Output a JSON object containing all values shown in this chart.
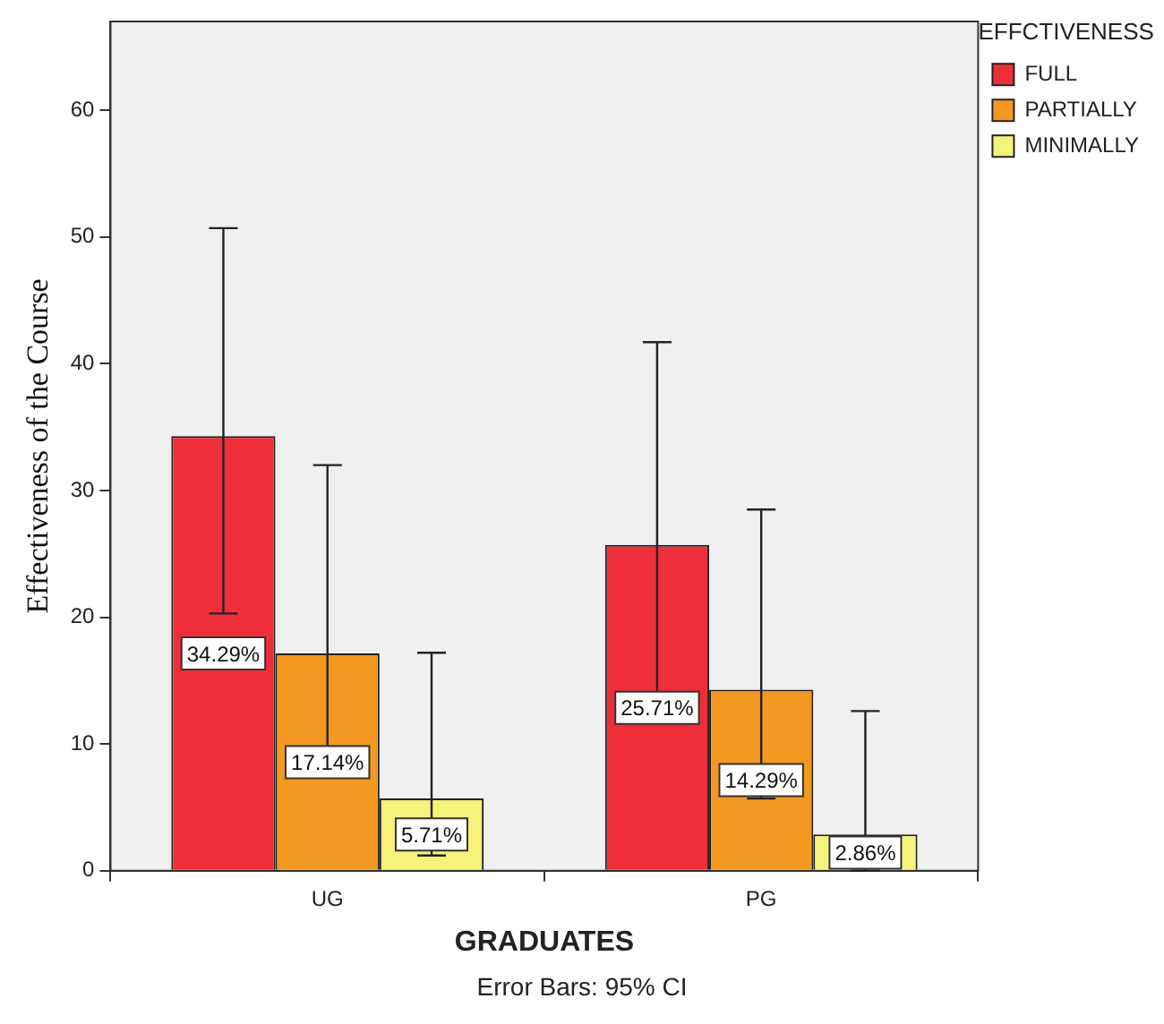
{
  "chart_data": {
    "type": "bar",
    "xlabel": "GRADUATES",
    "ylabel": "Effectiveness of the Course",
    "legend_title": "EFFCTIVENESS",
    "categories": [
      "UG",
      "PG"
    ],
    "series": [
      {
        "name": "FULL",
        "color": "#ee2f3a",
        "values": [
          34.29,
          25.71
        ],
        "value_labels": [
          "34.29%",
          "25.71%"
        ],
        "errors": [
          [
            20.3,
            50.7
          ],
          [
            13.6,
            41.7
          ]
        ]
      },
      {
        "name": "PARTIALLY",
        "color": "#f39820",
        "values": [
          17.14,
          14.29
        ],
        "value_labels": [
          "17.14%",
          "14.29%"
        ],
        "errors": [
          [
            7.6,
            32.0
          ],
          [
            5.7,
            28.5
          ]
        ]
      },
      {
        "name": "MINIMALLY",
        "color": "#f5f27a",
        "values": [
          5.71,
          2.86
        ],
        "value_labels": [
          "5.71%",
          "2.86%"
        ],
        "errors": [
          [
            1.2,
            17.2
          ],
          [
            0,
            12.6
          ]
        ]
      }
    ],
    "ylim": [
      0,
      67
    ],
    "yticks": [
      0,
      10,
      20,
      30,
      40,
      50,
      60
    ],
    "grid": false,
    "legend": "top right",
    "annotations": [
      "Error Bars: 95% CI"
    ]
  }
}
